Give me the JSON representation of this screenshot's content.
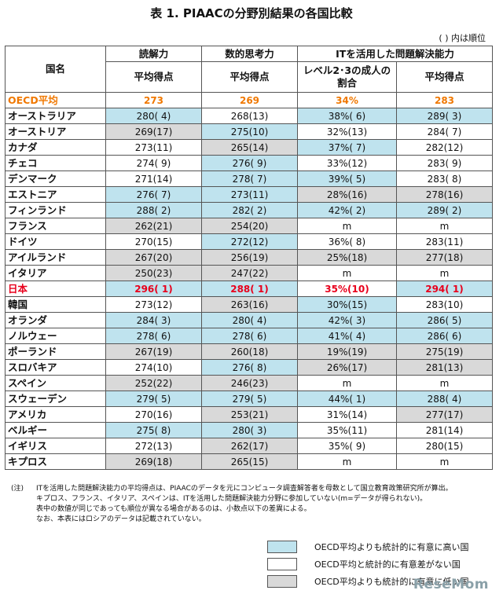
{
  "title": "表 1.  PIAACの分野別結果の各国比較",
  "order_note": "(   ) 内は順位",
  "headers": {
    "country": "国名",
    "reading": "読解力",
    "numeracy": "数的思考力",
    "it": "ITを活用した問題解決能力",
    "avg": "平均得点",
    "level": "レベル2･3の成人の割合"
  },
  "rows": [
    {
      "name": "OECD平均",
      "r": "273",
      "n": "269",
      "l": "34%",
      "i": "283",
      "rc": "white",
      "nc": "white",
      "lc": "white",
      "ic": "white",
      "style": "oecd"
    },
    {
      "name": "オーストラリア",
      "r": "280( 4)",
      "n": "268(13)",
      "l": "38%( 6)",
      "i": "289( 3)",
      "rc": "blue",
      "nc": "white",
      "lc": "blue",
      "ic": "blue",
      "style": ""
    },
    {
      "name": "オーストリア",
      "r": "269(17)",
      "n": "275(10)",
      "l": "32%(13)",
      "i": "284( 7)",
      "rc": "gray",
      "nc": "blue",
      "lc": "white",
      "ic": "white",
      "style": ""
    },
    {
      "name": "カナダ",
      "r": "273(11)",
      "n": "265(14)",
      "l": "37%( 7)",
      "i": "282(12)",
      "rc": "white",
      "nc": "gray",
      "lc": "blue",
      "ic": "white",
      "style": ""
    },
    {
      "name": "チェコ",
      "r": "274( 9)",
      "n": "276( 9)",
      "l": "33%(12)",
      "i": "283( 9)",
      "rc": "white",
      "nc": "blue",
      "lc": "white",
      "ic": "white",
      "style": ""
    },
    {
      "name": "デンマーク",
      "r": "271(14)",
      "n": "278( 7)",
      "l": "39%( 5)",
      "i": "283( 8)",
      "rc": "white",
      "nc": "blue",
      "lc": "blue",
      "ic": "white",
      "style": ""
    },
    {
      "name": "エストニア",
      "r": "276( 7)",
      "n": "273(11)",
      "l": "28%(16)",
      "i": "278(16)",
      "rc": "blue",
      "nc": "blue",
      "lc": "gray",
      "ic": "gray",
      "style": ""
    },
    {
      "name": "フィンランド",
      "r": "288( 2)",
      "n": "282( 2)",
      "l": "42%( 2)",
      "i": "289( 2)",
      "rc": "blue",
      "nc": "blue",
      "lc": "blue",
      "ic": "blue",
      "style": ""
    },
    {
      "name": "フランス",
      "r": "262(21)",
      "n": "254(20)",
      "l": "m",
      "i": "m",
      "rc": "gray",
      "nc": "gray",
      "lc": "white",
      "ic": "white",
      "style": ""
    },
    {
      "name": "ドイツ",
      "r": "270(15)",
      "n": "272(12)",
      "l": "36%( 8)",
      "i": "283(11)",
      "rc": "white",
      "nc": "blue",
      "lc": "white",
      "ic": "white",
      "style": ""
    },
    {
      "name": "アイルランド",
      "r": "267(20)",
      "n": "256(19)",
      "l": "25%(18)",
      "i": "277(18)",
      "rc": "gray",
      "nc": "gray",
      "lc": "gray",
      "ic": "gray",
      "style": ""
    },
    {
      "name": "イタリア",
      "r": "250(23)",
      "n": "247(22)",
      "l": "m",
      "i": "m",
      "rc": "gray",
      "nc": "gray",
      "lc": "white",
      "ic": "white",
      "style": ""
    },
    {
      "name": "日本",
      "r": "296( 1)",
      "n": "288( 1)",
      "l": "35%(10)",
      "i": "294( 1)",
      "rc": "blue",
      "nc": "blue",
      "lc": "white",
      "ic": "blue",
      "style": "japan"
    },
    {
      "name": "韓国",
      "r": "273(12)",
      "n": "263(16)",
      "l": "30%(15)",
      "i": "283(10)",
      "rc": "white",
      "nc": "gray",
      "lc": "blue",
      "ic": "white",
      "style": ""
    },
    {
      "name": "オランダ",
      "r": "284( 3)",
      "n": "280( 4)",
      "l": "42%( 3)",
      "i": "286( 5)",
      "rc": "blue",
      "nc": "blue",
      "lc": "blue",
      "ic": "blue",
      "style": ""
    },
    {
      "name": "ノルウェー",
      "r": "278( 6)",
      "n": "278( 6)",
      "l": "41%( 4)",
      "i": "286( 6)",
      "rc": "blue",
      "nc": "blue",
      "lc": "blue",
      "ic": "blue",
      "style": ""
    },
    {
      "name": "ポーランド",
      "r": "267(19)",
      "n": "260(18)",
      "l": "19%(19)",
      "i": "275(19)",
      "rc": "gray",
      "nc": "gray",
      "lc": "gray",
      "ic": "gray",
      "style": ""
    },
    {
      "name": "スロバキア",
      "r": "274(10)",
      "n": "276( 8)",
      "l": "26%(17)",
      "i": "281(13)",
      "rc": "white",
      "nc": "blue",
      "lc": "gray",
      "ic": "gray",
      "style": ""
    },
    {
      "name": "スペイン",
      "r": "252(22)",
      "n": "246(23)",
      "l": "m",
      "i": "m",
      "rc": "gray",
      "nc": "gray",
      "lc": "white",
      "ic": "white",
      "style": ""
    },
    {
      "name": "スウェーデン",
      "r": "279( 5)",
      "n": "279( 5)",
      "l": "44%( 1)",
      "i": "288( 4)",
      "rc": "blue",
      "nc": "blue",
      "lc": "blue",
      "ic": "blue",
      "style": ""
    },
    {
      "name": "アメリカ",
      "r": "270(16)",
      "n": "253(21)",
      "l": "31%(14)",
      "i": "277(17)",
      "rc": "white",
      "nc": "gray",
      "lc": "white",
      "ic": "gray",
      "style": ""
    },
    {
      "name": "ベルギー",
      "r": "275( 8)",
      "n": "280( 3)",
      "l": "35%(11)",
      "i": "281(14)",
      "rc": "blue",
      "nc": "blue",
      "lc": "white",
      "ic": "white",
      "style": ""
    },
    {
      "name": "イギリス",
      "r": "272(13)",
      "n": "262(17)",
      "l": "35%( 9)",
      "i": "280(15)",
      "rc": "white",
      "nc": "gray",
      "lc": "white",
      "ic": "white",
      "style": ""
    },
    {
      "name": "キプロス",
      "r": "269(18)",
      "n": "265(15)",
      "l": "m",
      "i": "m",
      "rc": "gray",
      "nc": "gray",
      "lc": "white",
      "ic": "white",
      "style": ""
    }
  ],
  "notes": {
    "label": "(注)",
    "lines": [
      "ITを活用した問題解決能力の平均得点は、PIAACのデータを元にコンピュータ調査解答者を母数として国立教育政策研究所が算出。",
      "キプロス、フランス、イタリア、スペインは、ITを活用した問題解決能力分野に参加していない(m=データが得られない)。",
      "表中の数値が同じであっても順位が異なる場合があるのは、小数点以下の差異による。",
      "なお、本表にはロシアのデータは記載されていない。"
    ]
  },
  "legend": [
    {
      "text": "OECD平均よりも統計的に有意に高い国",
      "color": "#bfe3ee"
    },
    {
      "text": "OECD平均と統計的に有意差がない国",
      "color": "#ffffff"
    },
    {
      "text": "OECD平均よりも統計的に有意に低い国",
      "color": "#d9d9d9"
    }
  ],
  "logo": "ReseMom"
}
